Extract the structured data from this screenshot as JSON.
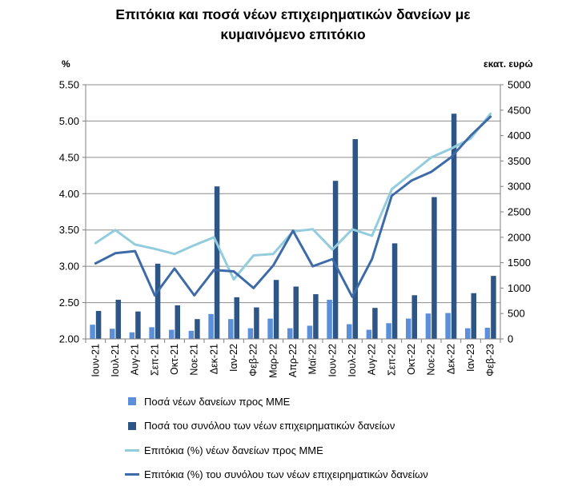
{
  "chart_data": {
    "type": "bar+line",
    "title_lines": [
      "Επιτόκια και ποσά νέων επιχειρηματικών δανείων με",
      "κυμαινόμενο επιτόκιο"
    ],
    "left_axis_label": "%",
    "right_axis_label": "εκατ. ευρώ",
    "categories": [
      "Ιουν-21",
      "Ιουλ-21",
      "Αυγ-21",
      "Σεπ-21",
      "Οκτ-21",
      "Νοε-21",
      "Δεκ-21",
      "Ιαν-22",
      "Φεβ-22",
      "Μαρ-22",
      "Απρ-22",
      "Μαϊ-22",
      "Ιουν-22",
      "Ιουλ-22",
      "Αυγ-22",
      "Σεπ-22",
      "Οκτ-22",
      "Νοε-22",
      "Δεκ-22",
      "Ιαν-23",
      "Φεβ-23"
    ],
    "left_ylim": [
      2.0,
      5.5
    ],
    "left_ticks": [
      "2.00",
      "2.50",
      "3.00",
      "3.50",
      "4.00",
      "4.50",
      "5.00",
      "5.50"
    ],
    "right_ylim": [
      0,
      5000
    ],
    "right_ticks": [
      "0",
      "500",
      "1000",
      "1500",
      "2000",
      "2500",
      "3000",
      "3500",
      "4000",
      "4500",
      "5000"
    ],
    "grid": "horizontal",
    "legend_position": "bottom",
    "series": [
      {
        "name": "Ποσά νέων δανείων προς ΜΜΕ",
        "kind": "bar",
        "axis": "right",
        "color": "#5b8fd9",
        "values": [
          280,
          200,
          130,
          230,
          180,
          160,
          490,
          390,
          210,
          400,
          210,
          260,
          770,
          290,
          180,
          310,
          400,
          500,
          510,
          210,
          220
        ]
      },
      {
        "name": "Ποσά του συνόλου των νέων επιχειρηματικών δανείων",
        "kind": "bar",
        "axis": "right",
        "color": "#2d5687",
        "values": [
          550,
          770,
          540,
          1480,
          660,
          390,
          3000,
          820,
          620,
          1160,
          1030,
          880,
          3110,
          3930,
          610,
          1880,
          860,
          2790,
          4430,
          900,
          1240
        ]
      },
      {
        "name": "Επιτόκια (%) νέων δανείων προς ΜΜΕ",
        "kind": "line",
        "axis": "left",
        "color": "#93cddd",
        "values": [
          3.32,
          3.5,
          3.3,
          3.24,
          3.17,
          3.29,
          3.4,
          2.82,
          3.15,
          3.17,
          3.48,
          3.51,
          3.23,
          3.51,
          3.42,
          4.06,
          4.28,
          4.5,
          4.62,
          4.76,
          5.1
        ]
      },
      {
        "name": "Επιτόκια (%) του συνόλου των νέων επιχειρηματικών δανείων",
        "kind": "line",
        "axis": "left",
        "color": "#3e6ba8",
        "values": [
          3.04,
          3.18,
          3.21,
          2.6,
          2.97,
          2.6,
          2.95,
          2.93,
          2.7,
          3.01,
          3.49,
          3.0,
          3.1,
          2.58,
          3.1,
          3.97,
          4.18,
          4.3,
          4.5,
          4.8,
          5.06
        ]
      }
    ]
  }
}
